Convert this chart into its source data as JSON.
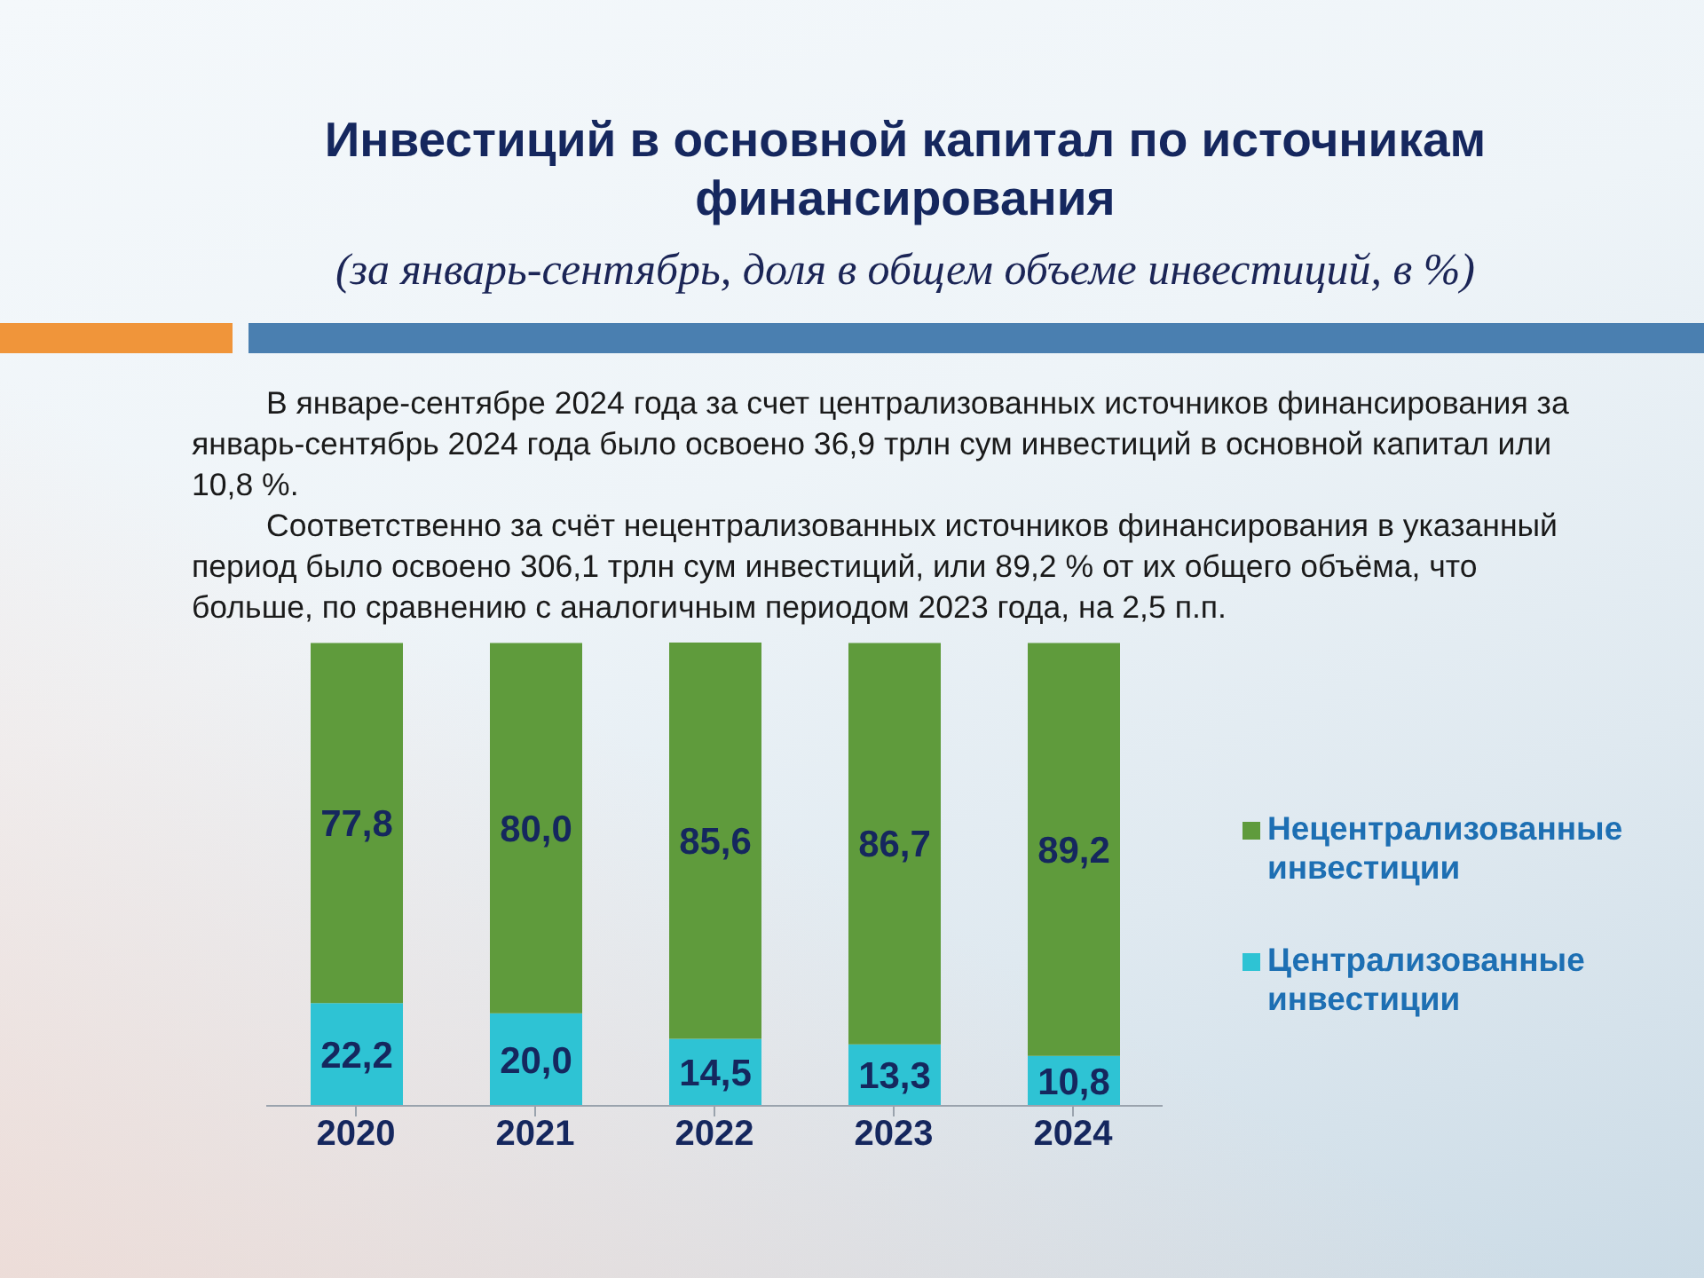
{
  "chart_data": {
    "type": "bar",
    "title": "Инвестиций в основной капитал по источникам финансирования",
    "subtitle": "(за январь-сентябрь, доля в общем объеме инвестиций, в %)",
    "annotations": [
      "В январе-сентябре 2024 года за счет централизованных источников финансирования за январь-сентябрь 2024 года было освоено 36,9 трлн сум инвестиций в основной капитал или 10,8 %.",
      "Соответственно за счёт нецентрализованных источников финансирования в указанный период было освоено 306,1 трлн сум инвестиций, или 89,2 % от их общего объёма, что больше, по сравнению с аналогичным периодом 2023 года, на 2,5 п.п."
    ],
    "categories": [
      "2020",
      "2021",
      "2022",
      "2023",
      "2024"
    ],
    "stacked": true,
    "series": [
      {
        "name": "Централизованные инвестиции",
        "color": "#2ec3d4",
        "values": [
          22.2,
          20.0,
          14.5,
          13.3,
          10.8
        ],
        "value_labels": [
          "22,2",
          "20,0",
          "14,5",
          "13,3",
          "10,8"
        ]
      },
      {
        "name": "Нецентрализованные инвестиции",
        "color": "#5f9b3c",
        "values": [
          77.8,
          80.0,
          85.6,
          86.7,
          89.2
        ],
        "value_labels": [
          "77,8",
          "80,0",
          "85,6",
          "86,7",
          "89,2"
        ]
      }
    ],
    "legend": "right",
    "tick_labels": "x"
  }
}
